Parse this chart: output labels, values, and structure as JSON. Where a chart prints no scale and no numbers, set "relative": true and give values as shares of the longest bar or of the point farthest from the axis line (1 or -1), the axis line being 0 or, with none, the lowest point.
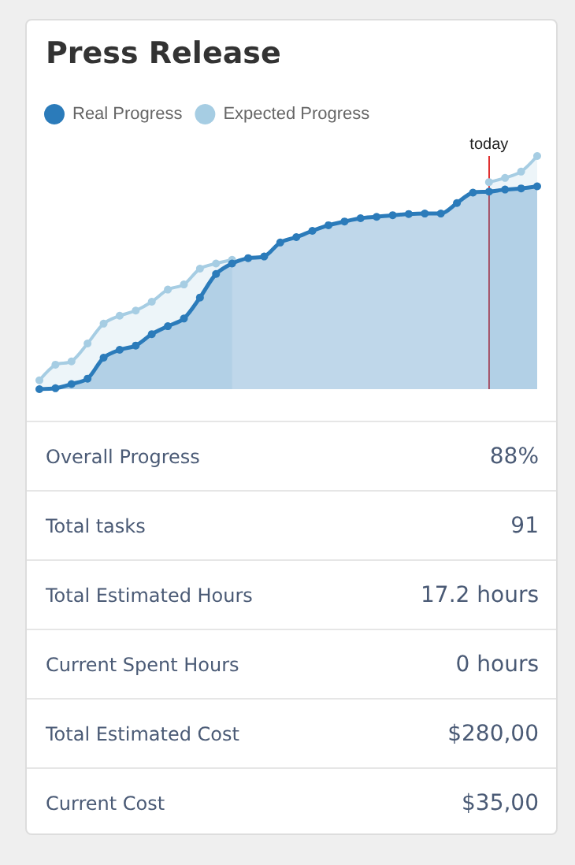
{
  "chart_data": {
    "type": "area",
    "title": "Press Release",
    "relative": true,
    "legend": "top left",
    "marker": "circle",
    "line_style": "solid",
    "grid": false,
    "categories": [
      null,
      null,
      null,
      null,
      null,
      null,
      null,
      null,
      null,
      null,
      null,
      null,
      null,
      null,
      null,
      null,
      null,
      null,
      null,
      null,
      null,
      null,
      null,
      null,
      null,
      null,
      null,
      null,
      null,
      null,
      null,
      null
    ],
    "series": [
      {
        "name": "Real Progress",
        "color": "#2b7bba",
        "values": [
          0,
          0.004,
          0.022,
          0.045,
          0.135,
          0.169,
          0.187,
          0.236,
          0.27,
          0.303,
          0.393,
          0.494,
          0.539,
          0.562,
          0.569,
          0.629,
          0.652,
          0.679,
          0.703,
          0.719,
          0.733,
          0.739,
          0.746,
          0.751,
          0.753,
          0.753,
          0.798,
          0.843,
          0.847,
          0.856,
          0.861,
          0.87
        ]
      },
      {
        "name": "Expected Progress",
        "color": "#a6cde3",
        "values": [
          0.038,
          0.105,
          0.119,
          0.196,
          0.281,
          0.315,
          0.337,
          0.375,
          0.427,
          0.449,
          0.517,
          0.539,
          0.555,
          null,
          null,
          null,
          null,
          null,
          null,
          null,
          null,
          null,
          null,
          null,
          null,
          null,
          null,
          null,
          0.888,
          0.906,
          0.933,
          1
        ]
      }
    ],
    "annotations": [
      "Overall Progress",
      "88%",
      "Total tasks",
      "91",
      "Total Estimated Hours",
      "17.2 hours",
      "Current Spent Hours",
      "0 hours",
      "Total Estimated Cost",
      "$280,00",
      "Current Cost",
      "$35,00",
      "today"
    ]
  }
}
